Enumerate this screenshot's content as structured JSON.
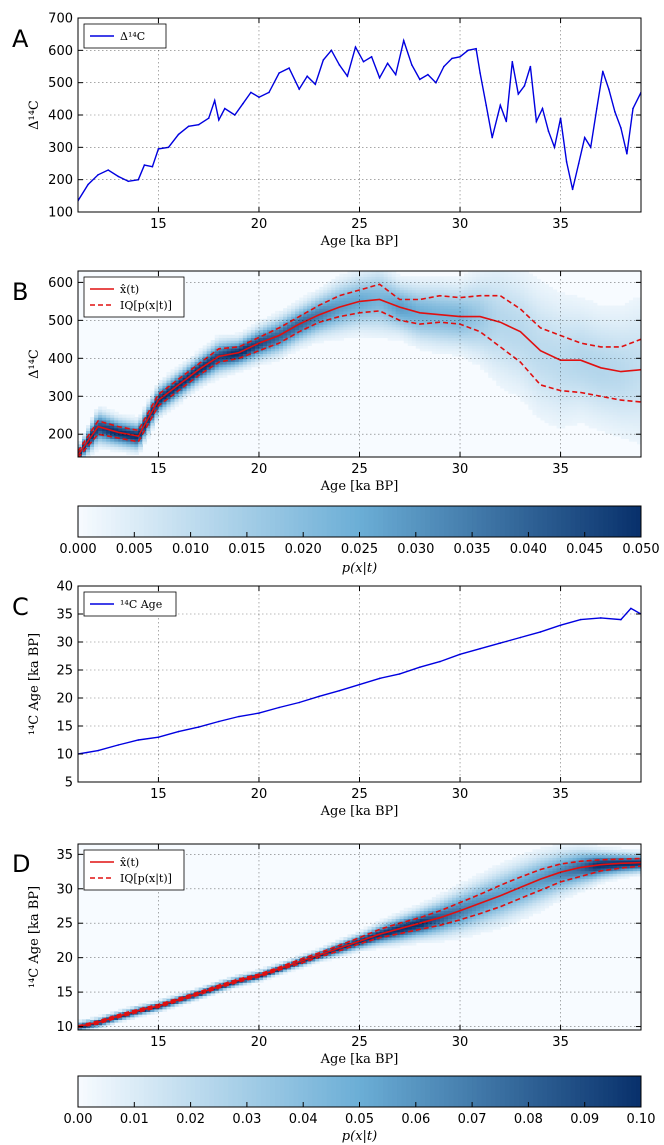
{
  "colors": {
    "blue_line": "#0000e0",
    "red_line": "#e01010",
    "cmap_low": "#f7fbff",
    "cmap_mid": "#6baed6",
    "cmap_high": "#08306b"
  },
  "chart_data": [
    {
      "panel": "A",
      "type": "line",
      "xlabel": "Age [ka BP]",
      "ylabel": "Δ¹⁴C",
      "xlim": [
        11,
        39
      ],
      "ylim": [
        100,
        700
      ],
      "xticks": [
        15,
        20,
        25,
        30,
        35
      ],
      "yticks": [
        100,
        200,
        300,
        400,
        500,
        600,
        700
      ],
      "grid": true,
      "legend": "top-left",
      "series": [
        {
          "name": "Δ¹⁴C",
          "color": "blue",
          "x": [
            11.0,
            11.5,
            12.0,
            12.5,
            13.0,
            13.5,
            14.0,
            14.3,
            14.7,
            15.0,
            15.5,
            16.0,
            16.5,
            17.0,
            17.5,
            17.8,
            18.0,
            18.3,
            18.8,
            19.2,
            19.6,
            20.0,
            20.5,
            21.0,
            21.5,
            22.0,
            22.4,
            22.8,
            23.2,
            23.6,
            24.0,
            24.4,
            24.8,
            25.2,
            25.6,
            26.0,
            26.4,
            26.8,
            27.2,
            27.6,
            28.0,
            28.4,
            28.8,
            29.2,
            29.6,
            30.0,
            30.4,
            30.8,
            31.0,
            31.3,
            31.6,
            32.0,
            32.3,
            32.6,
            32.9,
            33.2,
            33.5,
            33.8,
            34.1,
            34.4,
            34.7,
            35.0,
            35.3,
            35.6,
            35.9,
            36.2,
            36.5,
            36.8,
            37.1,
            37.4,
            37.7,
            38.0,
            38.3,
            38.6,
            39.0
          ],
          "values": [
            135,
            185,
            215,
            230,
            210,
            195,
            200,
            245,
            240,
            295,
            300,
            340,
            365,
            370,
            390,
            445,
            385,
            420,
            400,
            435,
            470,
            455,
            470,
            530,
            545,
            480,
            520,
            495,
            570,
            600,
            555,
            520,
            610,
            565,
            580,
            515,
            560,
            525,
            630,
            555,
            510,
            525,
            500,
            550,
            575,
            580,
            600,
            605,
            530,
            430,
            330,
            430,
            380,
            565,
            465,
            490,
            550,
            380,
            420,
            350,
            300,
            390,
            255,
            170,
            250,
            330,
            300,
            420,
            535,
            480,
            410,
            360,
            280,
            420,
            470
          ]
        }
      ]
    },
    {
      "panel": "B",
      "type": "heatmap",
      "xlabel": "Age [ka BP]",
      "ylabel": "Δ¹⁴C",
      "xlim": [
        11,
        39
      ],
      "ylim": [
        140,
        630
      ],
      "xticks": [
        15,
        20,
        25,
        30,
        35
      ],
      "yticks": [
        200,
        300,
        400,
        500,
        600
      ],
      "grid": true,
      "legend": "top-left",
      "colorbar": {
        "label": "p(x|t)",
        "min": 0.0,
        "max": 0.05,
        "ticks": [
          "0.000",
          "0.005",
          "0.010",
          "0.015",
          "0.020",
          "0.025",
          "0.030",
          "0.035",
          "0.040",
          "0.045",
          "0.050"
        ]
      },
      "x": [
        11.0,
        12.0,
        13.0,
        14.0,
        15.0,
        16.0,
        17.0,
        18.0,
        19.0,
        20.0,
        21.0,
        22.0,
        23.0,
        24.0,
        25.0,
        26.0,
        27.0,
        28.0,
        29.0,
        30.0,
        31.0,
        32.0,
        33.0,
        34.0,
        35.0,
        36.0,
        37.0,
        38.0,
        39.0
      ],
      "series": [
        {
          "name": "x̂(t)",
          "style": "solid",
          "color": "red",
          "values": [
            145,
            220,
            205,
            195,
            290,
            330,
            370,
            405,
            415,
            440,
            460,
            490,
            515,
            535,
            550,
            555,
            535,
            520,
            515,
            510,
            510,
            495,
            470,
            420,
            395,
            395,
            375,
            365,
            370
          ]
        },
        {
          "name": "IQ[p(x|t)]",
          "style": "dashed",
          "color": "red",
          "upper": [
            155,
            235,
            220,
            210,
            305,
            345,
            385,
            425,
            430,
            455,
            480,
            510,
            540,
            565,
            580,
            595,
            555,
            555,
            565,
            560,
            565,
            565,
            530,
            480,
            460,
            440,
            430,
            430,
            450
          ],
          "lower": [
            138,
            200,
            190,
            180,
            275,
            315,
            355,
            390,
            400,
            420,
            440,
            470,
            495,
            510,
            520,
            525,
            500,
            490,
            495,
            490,
            470,
            430,
            390,
            330,
            315,
            310,
            300,
            290,
            285
          ]
        }
      ]
    },
    {
      "panel": "C",
      "type": "line",
      "xlabel": "Age [ka BP]",
      "ylabel": "¹⁴C Age [ka BP]",
      "xlim": [
        11,
        39
      ],
      "ylim": [
        5,
        40
      ],
      "xticks": [
        15,
        20,
        25,
        30,
        35
      ],
      "yticks": [
        5,
        10,
        15,
        20,
        25,
        30,
        35,
        40
      ],
      "grid": true,
      "legend": "top-left",
      "series": [
        {
          "name": "¹⁴C Age",
          "color": "blue",
          "x": [
            11.0,
            12.0,
            13.0,
            14.0,
            15.0,
            16.0,
            17.0,
            18.0,
            19.0,
            20.0,
            21.0,
            22.0,
            23.0,
            24.0,
            25.0,
            26.0,
            27.0,
            28.0,
            29.0,
            30.0,
            31.0,
            32.0,
            33.0,
            34.0,
            35.0,
            36.0,
            37.0,
            38.0,
            38.5,
            39.0
          ],
          "values": [
            10.0,
            10.6,
            11.6,
            12.5,
            13.0,
            14.0,
            14.8,
            15.8,
            16.7,
            17.3,
            18.3,
            19.2,
            20.3,
            21.3,
            22.4,
            23.5,
            24.3,
            25.5,
            26.5,
            27.8,
            28.8,
            29.8,
            30.8,
            31.8,
            33.0,
            34.0,
            34.3,
            34.0,
            36.0,
            35.0
          ]
        }
      ]
    },
    {
      "panel": "D",
      "type": "heatmap",
      "xlabel": "Age [ka BP]",
      "ylabel": "¹⁴C Age [ka BP]",
      "xlim": [
        11,
        39
      ],
      "ylim": [
        9.5,
        36.5
      ],
      "xticks": [
        15,
        20,
        25,
        30,
        35
      ],
      "yticks": [
        10,
        15,
        20,
        25,
        30,
        35
      ],
      "grid": true,
      "legend": "top-left",
      "colorbar": {
        "label": "p(x|t)",
        "min": 0.0,
        "max": 0.1,
        "ticks": [
          "0.00",
          "0.01",
          "0.02",
          "0.03",
          "0.04",
          "0.05",
          "0.06",
          "0.07",
          "0.08",
          "0.09",
          "0.10"
        ]
      },
      "x": [
        11.0,
        12.0,
        13.0,
        14.0,
        15.0,
        16.0,
        17.0,
        18.0,
        19.0,
        20.0,
        21.0,
        22.0,
        23.0,
        24.0,
        25.0,
        26.0,
        27.0,
        28.0,
        29.0,
        30.0,
        31.0,
        32.0,
        33.0,
        34.0,
        35.0,
        36.0,
        37.0,
        38.0,
        39.0
      ],
      "series": [
        {
          "name": "x̂(t)",
          "style": "solid",
          "color": "red",
          "values": [
            10.0,
            10.6,
            11.5,
            12.3,
            13.0,
            13.9,
            14.8,
            15.8,
            16.7,
            17.4,
            18.4,
            19.4,
            20.4,
            21.4,
            22.4,
            23.4,
            24.2,
            25.0,
            25.8,
            26.8,
            27.9,
            29.0,
            30.2,
            31.4,
            32.4,
            33.1,
            33.5,
            33.7,
            33.8
          ]
        },
        {
          "name": "IQ[p(x|t)]",
          "style": "dashed",
          "color": "red",
          "upper": [
            10.1,
            10.8,
            11.7,
            12.5,
            13.2,
            14.1,
            15.0,
            16.0,
            16.9,
            17.6,
            18.6,
            19.7,
            20.7,
            21.8,
            22.9,
            24.1,
            25.0,
            25.8,
            26.8,
            28.0,
            29.2,
            30.5,
            31.7,
            32.8,
            33.6,
            34.0,
            34.2,
            34.3,
            34.4
          ],
          "lower": [
            9.9,
            10.4,
            11.3,
            12.1,
            12.8,
            13.7,
            14.6,
            15.6,
            16.5,
            17.2,
            18.2,
            19.1,
            20.1,
            21.0,
            22.0,
            22.9,
            23.5,
            24.1,
            24.7,
            25.5,
            26.4,
            27.4,
            28.6,
            29.8,
            31.0,
            31.8,
            32.6,
            33.0,
            33.3
          ]
        }
      ]
    }
  ]
}
